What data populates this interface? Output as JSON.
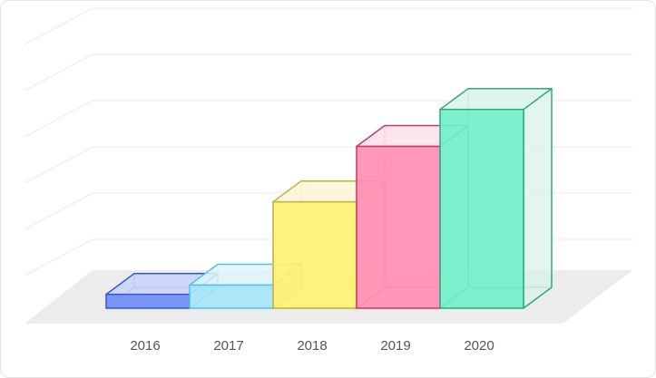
{
  "chart_data": {
    "type": "bar",
    "style": "3d",
    "categories": [
      "2016",
      "2017",
      "2018",
      "2019",
      "2020"
    ],
    "values": [
      0.3,
      0.5,
      2.3,
      3.5,
      4.3
    ],
    "ylim": [
      0,
      6
    ],
    "grid": true,
    "legend": "none",
    "colors": [
      {
        "face": "#6f8ff2",
        "top": "#c9d4fa",
        "stroke": "#2d5ad8"
      },
      {
        "face": "#a6e6f8",
        "top": "#e0f6fc",
        "stroke": "#52c2e6"
      },
      {
        "face": "#fff173",
        "top": "#faf4d6",
        "stroke": "#c8b030"
      },
      {
        "face": "#ff8fb4",
        "top": "#f9e1ea",
        "stroke": "#c8386a"
      },
      {
        "face": "#71f0c9",
        "top": "#d8f3ea",
        "stroke": "#30a882"
      }
    ]
  }
}
